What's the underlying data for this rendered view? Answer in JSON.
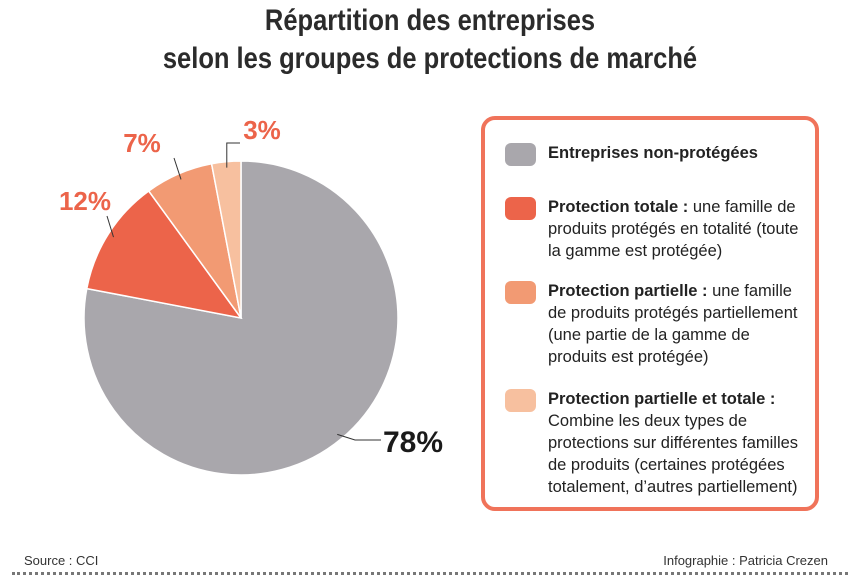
{
  "chart_data": {
    "type": "pie",
    "title": "Répartition des entreprises selon les groupes de protections de marché",
    "title_lines": [
      "Répartition des entreprises",
      "selon les groupes de protections de marché"
    ],
    "slices": [
      {
        "name": "Entreprises non-protégées",
        "value": 78,
        "label": "78%",
        "color": "#a9a7ac",
        "label_color": "#1a1a1a"
      },
      {
        "name": "Protection totale",
        "value": 12,
        "label": "12%",
        "color": "#ec644a",
        "label_color": "#ec644a"
      },
      {
        "name": "Protection partielle",
        "value": 7,
        "label": "7%",
        "color": "#f29a73",
        "label_color": "#ec644a"
      },
      {
        "name": "Protection partielle et totale",
        "value": 3,
        "label": "3%",
        "color": "#f7c09f",
        "label_color": "#ec644a"
      }
    ],
    "legend_placement": "right",
    "legend": [
      {
        "bold": "Entreprises non-protégées",
        "text": ""
      },
      {
        "bold": "Protection totale :",
        "text": " une famille de produits protégés en totalité (toute la gamme est protégée)"
      },
      {
        "bold": "Protection partielle :",
        "text": " une famille de produits protégés partiellement (une partie de la gamme de produits est protégée)"
      },
      {
        "bold": "Protection partielle et totale :",
        "text": " Combine les deux types de protections sur différentes familles de produits (certaines protégées totalement, d’autres partiellement)"
      }
    ]
  },
  "footer": {
    "source": "Source : CCI",
    "credit": "Infographie : Patricia Crezen"
  }
}
